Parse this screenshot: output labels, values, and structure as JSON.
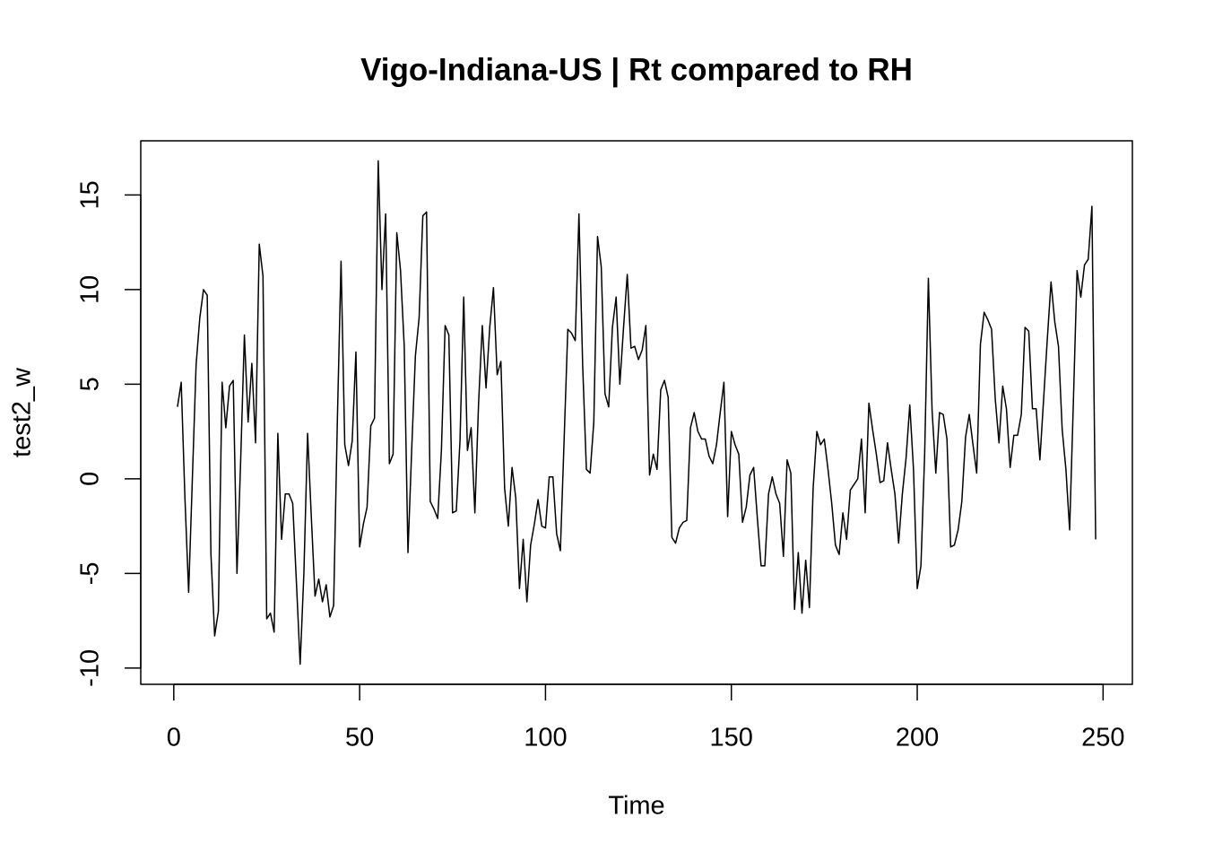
{
  "chart_data": {
    "type": "line",
    "title": "Vigo-Indiana-US | Rt compared to RH",
    "x_label": "Time",
    "y_label": "test2_w",
    "color": "#000000",
    "x": [
      1,
      2,
      3,
      4,
      5,
      6,
      7,
      8,
      9,
      10,
      11,
      12,
      13,
      14,
      15,
      16,
      17,
      18,
      19,
      20,
      21,
      22,
      23,
      24,
      25,
      26,
      27,
      28,
      29,
      30,
      31,
      32,
      33,
      34,
      35,
      36,
      37,
      38,
      39,
      40,
      41,
      42,
      43,
      44,
      45,
      46,
      47,
      48,
      49,
      50,
      51,
      52,
      53,
      54,
      55,
      56,
      57,
      58,
      59,
      60,
      61,
      62,
      63,
      64,
      65,
      66,
      67,
      68,
      69,
      70,
      71,
      72,
      73,
      74,
      75,
      76,
      77,
      78,
      79,
      80,
      81,
      82,
      83,
      84,
      85,
      86,
      87,
      88,
      89,
      90,
      91,
      92,
      93,
      94,
      95,
      96,
      97,
      98,
      99,
      100,
      101,
      102,
      103,
      104,
      105,
      106,
      107,
      108,
      109,
      110,
      111,
      112,
      113,
      114,
      115,
      116,
      117,
      118,
      119,
      120,
      121,
      122,
      123,
      124,
      125,
      126,
      127,
      128,
      129,
      130,
      131,
      132,
      133,
      134,
      135,
      136,
      137,
      138,
      139,
      140,
      141,
      142,
      143,
      144,
      145,
      146,
      147,
      148,
      149,
      150,
      151,
      152,
      153,
      154,
      155,
      156,
      157,
      158,
      159,
      160,
      161,
      162,
      163,
      164,
      165,
      166,
      167,
      168,
      169,
      170,
      171,
      172,
      173,
      174,
      175,
      176,
      177,
      178,
      179,
      180,
      181,
      182,
      183,
      184,
      185,
      186,
      187,
      188,
      189,
      190,
      191,
      192,
      193,
      194,
      195,
      196,
      197,
      198,
      199,
      200,
      201,
      202,
      203,
      204,
      205,
      206,
      207,
      208,
      209,
      210,
      211,
      212,
      213,
      214,
      215,
      216,
      217,
      218,
      219,
      220,
      221,
      222,
      223,
      224,
      225,
      226,
      227,
      228,
      229,
      230,
      231,
      232,
      233,
      234,
      235,
      236,
      237,
      238,
      239,
      240,
      241,
      242,
      243,
      244,
      245,
      246,
      247,
      248
    ],
    "values": [
      3.8,
      5.1,
      -1,
      -6,
      0,
      6,
      8.5,
      10,
      9.7,
      -4,
      -8.3,
      -7,
      5.1,
      2.7,
      4.9,
      5.2,
      -5,
      1,
      7.6,
      3,
      6.1,
      1.9,
      12.4,
      10.7,
      -7.4,
      -7.1,
      -8.1,
      2.4,
      -3.2,
      -0.8,
      -0.8,
      -1.3,
      -5.5,
      -9.8,
      -5,
      2.4,
      -2,
      -6.2,
      -5.3,
      -6.5,
      -5.6,
      -7.3,
      -6.7,
      3,
      11.5,
      1.8,
      0.7,
      2,
      6.7,
      -3.6,
      -2.4,
      -1.5,
      2.8,
      3.2,
      16.8,
      10,
      14,
      0.8,
      1.3,
      13,
      11,
      7,
      -3.9,
      1.5,
      6.5,
      8.5,
      13.9,
      14.1,
      -1.2,
      -1.6,
      -2.1,
      1.5,
      8.1,
      7.6,
      -1.8,
      -1.7,
      2,
      9.6,
      1.5,
      2.7,
      -1.8,
      4,
      8.1,
      4.8,
      8,
      10.1,
      5.5,
      6.2,
      -0.5,
      -2.5,
      0.6,
      -1,
      -5.8,
      -3.2,
      -6.5,
      -3.5,
      -2.4,
      -1.1,
      -2.5,
      -2.6,
      0.1,
      0.1,
      -2.9,
      -3.8,
      2,
      7.9,
      7.7,
      7.3,
      14,
      6,
      0.5,
      0.3,
      3,
      12.8,
      11.2,
      4.5,
      3.8,
      8,
      9.6,
      5,
      8,
      10.8,
      6.9,
      7,
      6.3,
      6.8,
      8.1,
      0.2,
      1.3,
      0.5,
      4.7,
      5.2,
      4.3,
      -3.1,
      -3.4,
      -2.6,
      -2.3,
      -2.2,
      2.7,
      3.5,
      2.5,
      2.1,
      2.1,
      1.2,
      0.8,
      1.8,
      3.5,
      5.1,
      -2,
      2.5,
      1.8,
      1.3,
      -2.3,
      -1.5,
      0.2,
      0.6,
      -2.1,
      -4.6,
      -4.6,
      -0.8,
      0.1,
      -0.8,
      -1.3,
      -4.1,
      1,
      0.3,
      -6.9,
      -3.9,
      -7.1,
      -4.3,
      -6.8,
      -0.5,
      2.5,
      1.8,
      2.1,
      0.5,
      -1.3,
      -3.5,
      -4,
      -1.8,
      -3.2,
      -0.6,
      -0.3,
      0,
      2.1,
      -1.8,
      4,
      2.6,
      1.3,
      -0.2,
      -0.1,
      1.9,
      0.5,
      -0.8,
      -3.4,
      -0.8,
      1.1,
      3.9,
      0.5,
      -5.8,
      -4.6,
      1.3,
      10.6,
      3.6,
      0.3,
      3.5,
      3.4,
      2.1,
      -3.6,
      -3.5,
      -2.7,
      -1.2,
      2.2,
      3.4,
      1.8,
      0.3,
      7.1,
      8.8,
      8.4,
      7.9,
      4.2,
      1.9,
      4.9,
      3.7,
      0.6,
      2.3,
      2.3,
      3.4,
      8,
      7.8,
      3.7,
      3.7,
      1,
      4.2,
      7.4,
      10.4,
      8.3,
      7,
      2.6,
      0.5,
      -2.7,
      4,
      11,
      9.6,
      11.3,
      11.6,
      14.4,
      -3.2
    ],
    "xlim": [
      -8.88,
      257.88
    ],
    "xticks": [
      0,
      50,
      100,
      150,
      200,
      250
    ],
    "ylim": [
      -10.86,
      17.86
    ],
    "yticks": [
      -10,
      -5,
      0,
      5,
      10,
      15
    ]
  }
}
